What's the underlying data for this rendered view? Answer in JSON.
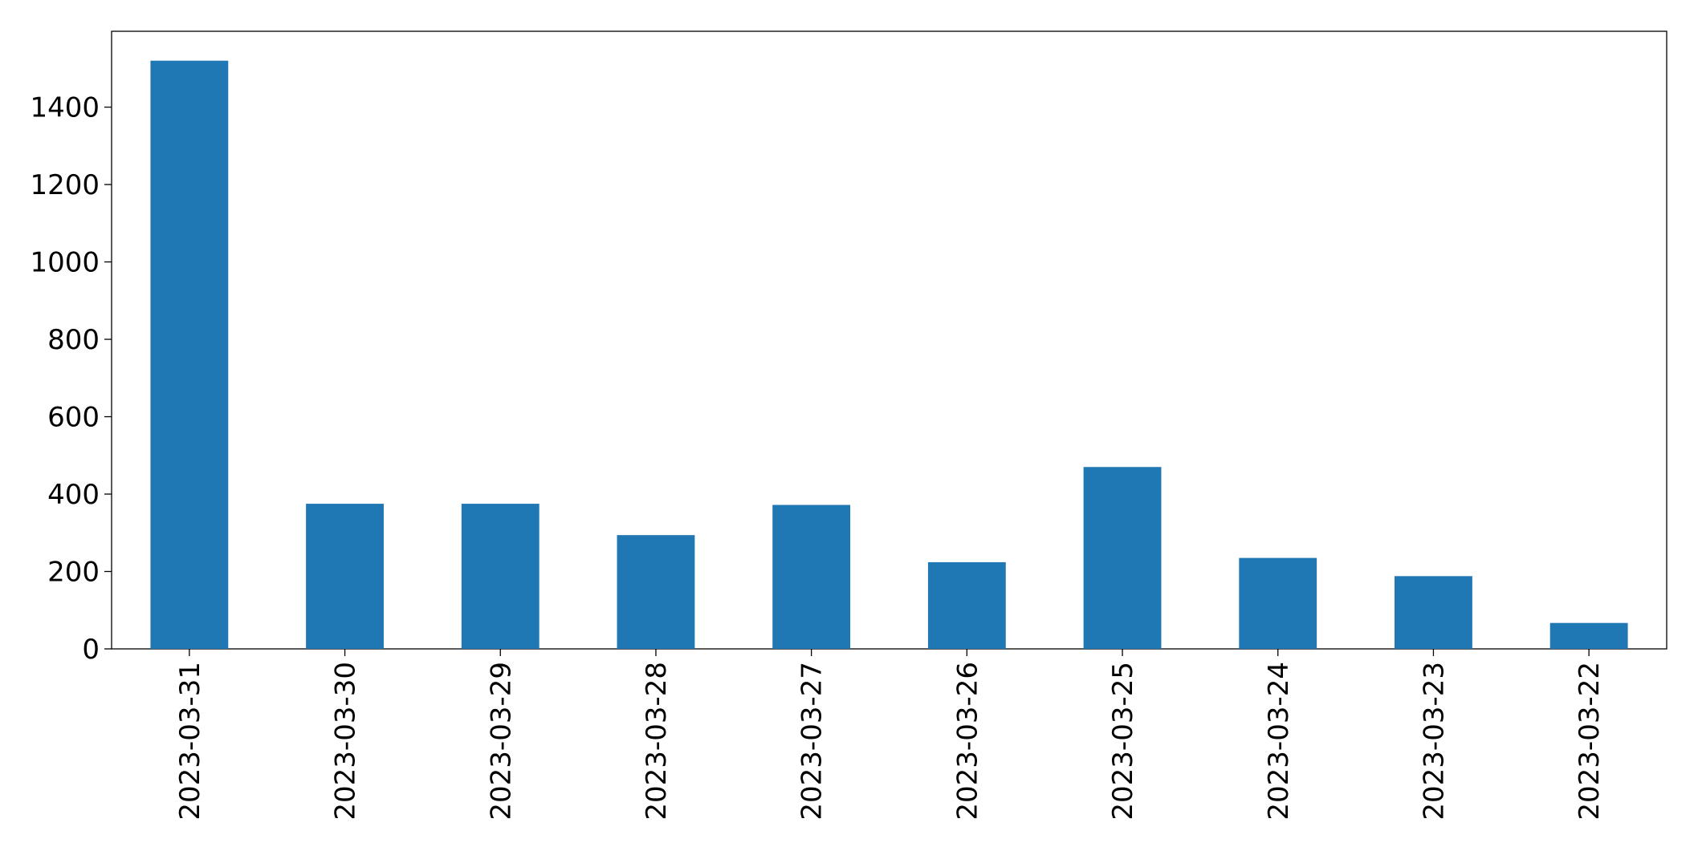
{
  "chart_data": {
    "type": "bar",
    "categories": [
      "2023-03-31",
      "2023-03-30",
      "2023-03-29",
      "2023-03-28",
      "2023-03-27",
      "2023-03-26",
      "2023-03-25",
      "2023-03-24",
      "2023-03-23",
      "2023-03-22"
    ],
    "values": [
      1520,
      375,
      375,
      294,
      372,
      224,
      470,
      235,
      188,
      67
    ],
    "color": "#1f77b4",
    "ylim": [
      0,
      1596
    ],
    "yticks": [
      0,
      200,
      400,
      600,
      800,
      1000,
      1200,
      1400
    ],
    "grid": false
  }
}
